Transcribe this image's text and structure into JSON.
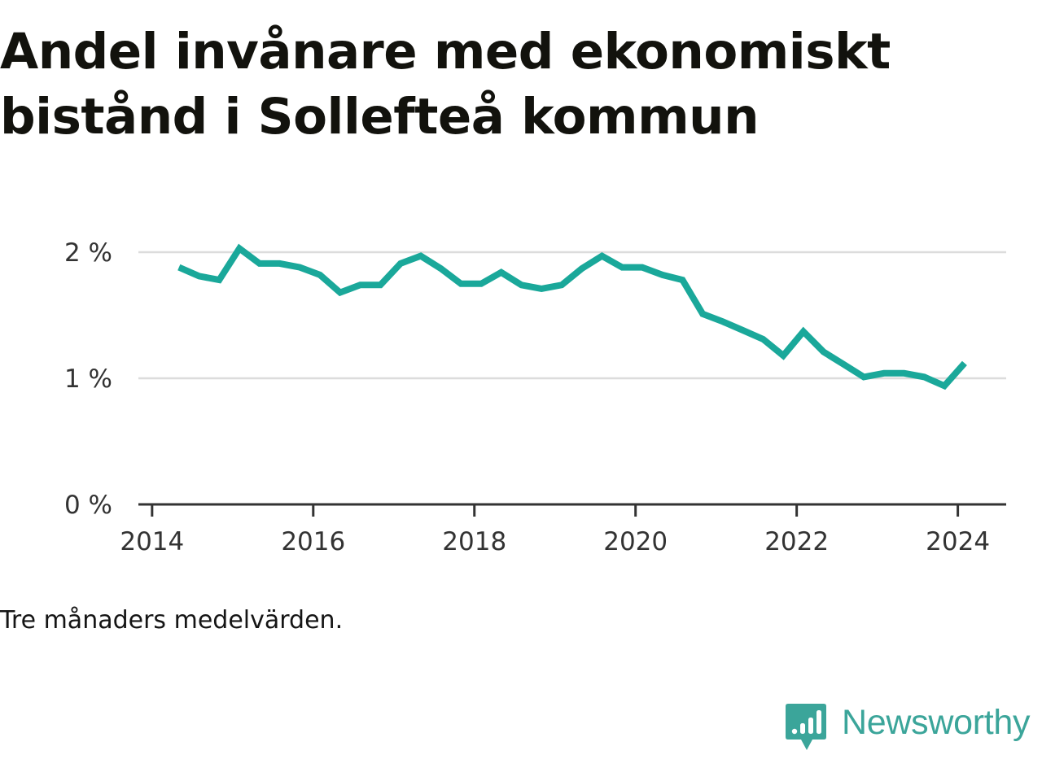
{
  "header": {
    "title_line1": "Andel invånare med ekonomiskt",
    "title_line2": "bistånd i Sollefteå kommun"
  },
  "footnote": "Tre månaders medelvärden.",
  "brand": {
    "name": "Newsworthy",
    "icon": "bar-chart-bubble-icon",
    "color": "#3ba59a"
  },
  "chart_data": {
    "type": "line",
    "title": "Andel invånare med ekonomiskt bistånd i Sollefteå kommun",
    "note": "Tre månaders medelvärden.",
    "xlabel": "",
    "ylabel": "",
    "x_tick_labels": [
      "2014",
      "2016",
      "2018",
      "2020",
      "2022",
      "2024"
    ],
    "x_ticks": [
      2014,
      2016,
      2018,
      2020,
      2022,
      2024
    ],
    "y_tick_labels": [
      "0 %",
      "1 %",
      "2 %"
    ],
    "y_ticks": [
      0,
      1,
      2
    ],
    "xlim": [
      2013.83,
      2024.6
    ],
    "ylim": [
      0,
      2.0
    ],
    "grid": true,
    "line_color": "#1aa89a",
    "series": [
      {
        "name": "",
        "x": [
          "2014-05",
          "2014-08",
          "2014-11",
          "2015-02",
          "2015-05",
          "2015-08",
          "2015-11",
          "2016-02",
          "2016-05",
          "2016-08",
          "2016-11",
          "2017-02",
          "2017-05",
          "2017-08",
          "2017-11",
          "2018-02",
          "2018-05",
          "2018-08",
          "2018-11",
          "2019-02",
          "2019-05",
          "2019-08",
          "2019-11",
          "2020-02",
          "2020-05",
          "2020-08",
          "2020-11",
          "2021-02",
          "2021-05",
          "2021-08",
          "2021-11",
          "2022-02",
          "2022-05",
          "2022-08",
          "2022-11",
          "2023-02",
          "2023-05",
          "2023-08",
          "2023-11",
          "2024-02"
        ],
        "values": [
          1.88,
          1.81,
          1.78,
          2.03,
          1.91,
          1.91,
          1.88,
          1.82,
          1.68,
          1.74,
          1.74,
          1.91,
          1.97,
          1.87,
          1.75,
          1.75,
          1.84,
          1.74,
          1.71,
          1.74,
          1.87,
          1.97,
          1.88,
          1.88,
          1.82,
          1.78,
          1.51,
          1.45,
          1.38,
          1.31,
          1.18,
          1.37,
          1.21,
          1.11,
          1.01,
          1.04,
          1.04,
          1.01,
          0.94,
          1.12
        ]
      }
    ]
  }
}
